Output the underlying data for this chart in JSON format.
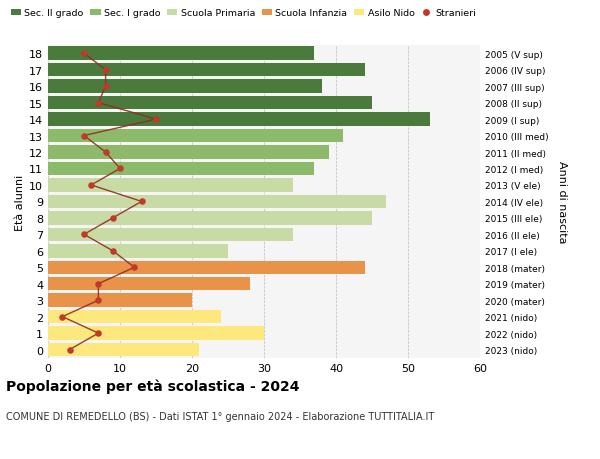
{
  "ages": [
    0,
    1,
    2,
    3,
    4,
    5,
    6,
    7,
    8,
    9,
    10,
    11,
    12,
    13,
    14,
    15,
    16,
    17,
    18
  ],
  "bar_values": [
    21,
    30,
    24,
    20,
    28,
    44,
    25,
    34,
    45,
    47,
    34,
    37,
    39,
    41,
    53,
    45,
    38,
    44,
    37
  ],
  "right_labels": [
    "2023 (nido)",
    "2022 (nido)",
    "2021 (nido)",
    "2020 (mater)",
    "2019 (mater)",
    "2018 (mater)",
    "2017 (I ele)",
    "2016 (II ele)",
    "2015 (III ele)",
    "2014 (IV ele)",
    "2013 (V ele)",
    "2012 (I med)",
    "2011 (II med)",
    "2010 (III med)",
    "2009 (I sup)",
    "2008 (II sup)",
    "2007 (III sup)",
    "2006 (IV sup)",
    "2005 (V sup)"
  ],
  "bar_colors": [
    "#fce87c",
    "#fce87c",
    "#fce87c",
    "#e8924a",
    "#e8924a",
    "#e8924a",
    "#c8dba4",
    "#c8dba4",
    "#c8dba4",
    "#c8dba4",
    "#c8dba4",
    "#8db96a",
    "#8db96a",
    "#8db96a",
    "#4a7a3c",
    "#4a7a3c",
    "#4a7a3c",
    "#4a7a3c",
    "#4a7a3c"
  ],
  "stranieri_values": [
    3,
    7,
    2,
    7,
    7,
    12,
    9,
    5,
    9,
    13,
    6,
    10,
    8,
    5,
    15,
    7,
    8,
    8,
    5
  ],
  "legend_labels": [
    "Sec. II grado",
    "Sec. I grado",
    "Scuola Primaria",
    "Scuola Infanzia",
    "Asilo Nido",
    "Stranieri"
  ],
  "legend_colors": [
    "#4a7a3c",
    "#8db96a",
    "#c8dba4",
    "#e8924a",
    "#fce87c",
    "#c0392b"
  ],
  "ylabel_left": "Età alunni",
  "ylabel_right": "Anni di nascita",
  "title": "Popolazione per età scolastica - 2024",
  "subtitle": "COMUNE DI REMEDELLO (BS) - Dati ISTAT 1° gennaio 2024 - Elaborazione TUTTITALIA.IT",
  "xlim": [
    0,
    60
  ],
  "xticks": [
    0,
    10,
    20,
    30,
    40,
    50,
    60
  ],
  "stranieri_color": "#c0392b",
  "stranieri_line_color": "#922b21",
  "background_color": "#f5f5f5"
}
